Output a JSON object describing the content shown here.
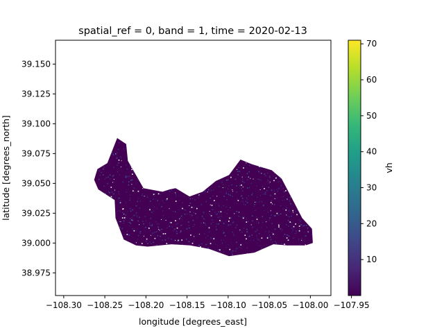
{
  "chart_data": {
    "type": "heatmap",
    "title": "spatial_ref = 0, band = 1, time = 2020-02-13",
    "xlabel": "longitude [degrees_east]",
    "ylabel": "latitude [degrees_north]",
    "xlim": [
      -108.31,
      -107.975
    ],
    "ylim": [
      38.956,
      39.17
    ],
    "x_ticks": [
      -108.3,
      -108.25,
      -108.2,
      -108.15,
      -108.1,
      -108.05,
      -108.0,
      -107.95
    ],
    "x_tick_labels": [
      "−108.30",
      "−108.25",
      "−108.20",
      "−108.15",
      "−108.10",
      "−108.05",
      "−108.00",
      "−107.95"
    ],
    "y_ticks": [
      38.975,
      39.0,
      39.025,
      39.05,
      39.075,
      39.1,
      39.125,
      39.15
    ],
    "y_tick_labels": [
      "38.975",
      "39.000",
      "39.025",
      "39.050",
      "39.075",
      "39.100",
      "39.125",
      "39.150"
    ],
    "region_outline": [
      [
        -108.263,
        39.053
      ],
      [
        -108.259,
        39.062
      ],
      [
        -108.247,
        39.067
      ],
      [
        -108.235,
        39.088
      ],
      [
        -108.224,
        39.083
      ],
      [
        -108.222,
        39.069
      ],
      [
        -108.203,
        39.046
      ],
      [
        -108.18,
        39.043
      ],
      [
        -108.171,
        39.045
      ],
      [
        -108.164,
        39.046
      ],
      [
        -108.147,
        39.039
      ],
      [
        -108.131,
        39.043
      ],
      [
        -108.115,
        39.052
      ],
      [
        -108.099,
        39.057
      ],
      [
        -108.085,
        39.07
      ],
      [
        -108.071,
        39.066
      ],
      [
        -108.047,
        39.061
      ],
      [
        -108.035,
        39.054
      ],
      [
        -108.022,
        39.037
      ],
      [
        -108.01,
        39.021
      ],
      [
        -107.998,
        39.012
      ],
      [
        -107.997,
        39.0
      ],
      [
        -108.006,
        38.998
      ],
      [
        -108.028,
        38.998
      ],
      [
        -108.045,
        38.999
      ],
      [
        -108.068,
        38.992
      ],
      [
        -108.099,
        38.989
      ],
      [
        -108.123,
        38.995
      ],
      [
        -108.146,
        38.998
      ],
      [
        -108.169,
        38.999
      ],
      [
        -108.198,
        38.997
      ],
      [
        -108.212,
        38.998
      ],
      [
        -108.227,
        39.003
      ],
      [
        -108.237,
        39.021
      ],
      [
        -108.238,
        39.036
      ],
      [
        -108.258,
        39.045
      ]
    ],
    "colorbar": {
      "label": "vh",
      "colormap": "viridis",
      "vmin": 0,
      "vmax": 71,
      "ticks": [
        10,
        20,
        30,
        40,
        50,
        60,
        70
      ],
      "tick_labels": [
        "10",
        "20",
        "30",
        "40",
        "50",
        "60",
        "70"
      ],
      "stops": [
        "#440154",
        "#482878",
        "#3e4a89",
        "#31688e",
        "#26828e",
        "#1f9e89",
        "#35b779",
        "#6ece58",
        "#b5de2b",
        "#fde725"
      ]
    },
    "dominant_value": 1,
    "speckle_value_range": [
      3,
      14
    ],
    "colors": {
      "fill": "#440154",
      "speckle_dark": "#3b2f7e",
      "speckle_mid": "#45478c",
      "nodata": "#ffffff"
    }
  }
}
